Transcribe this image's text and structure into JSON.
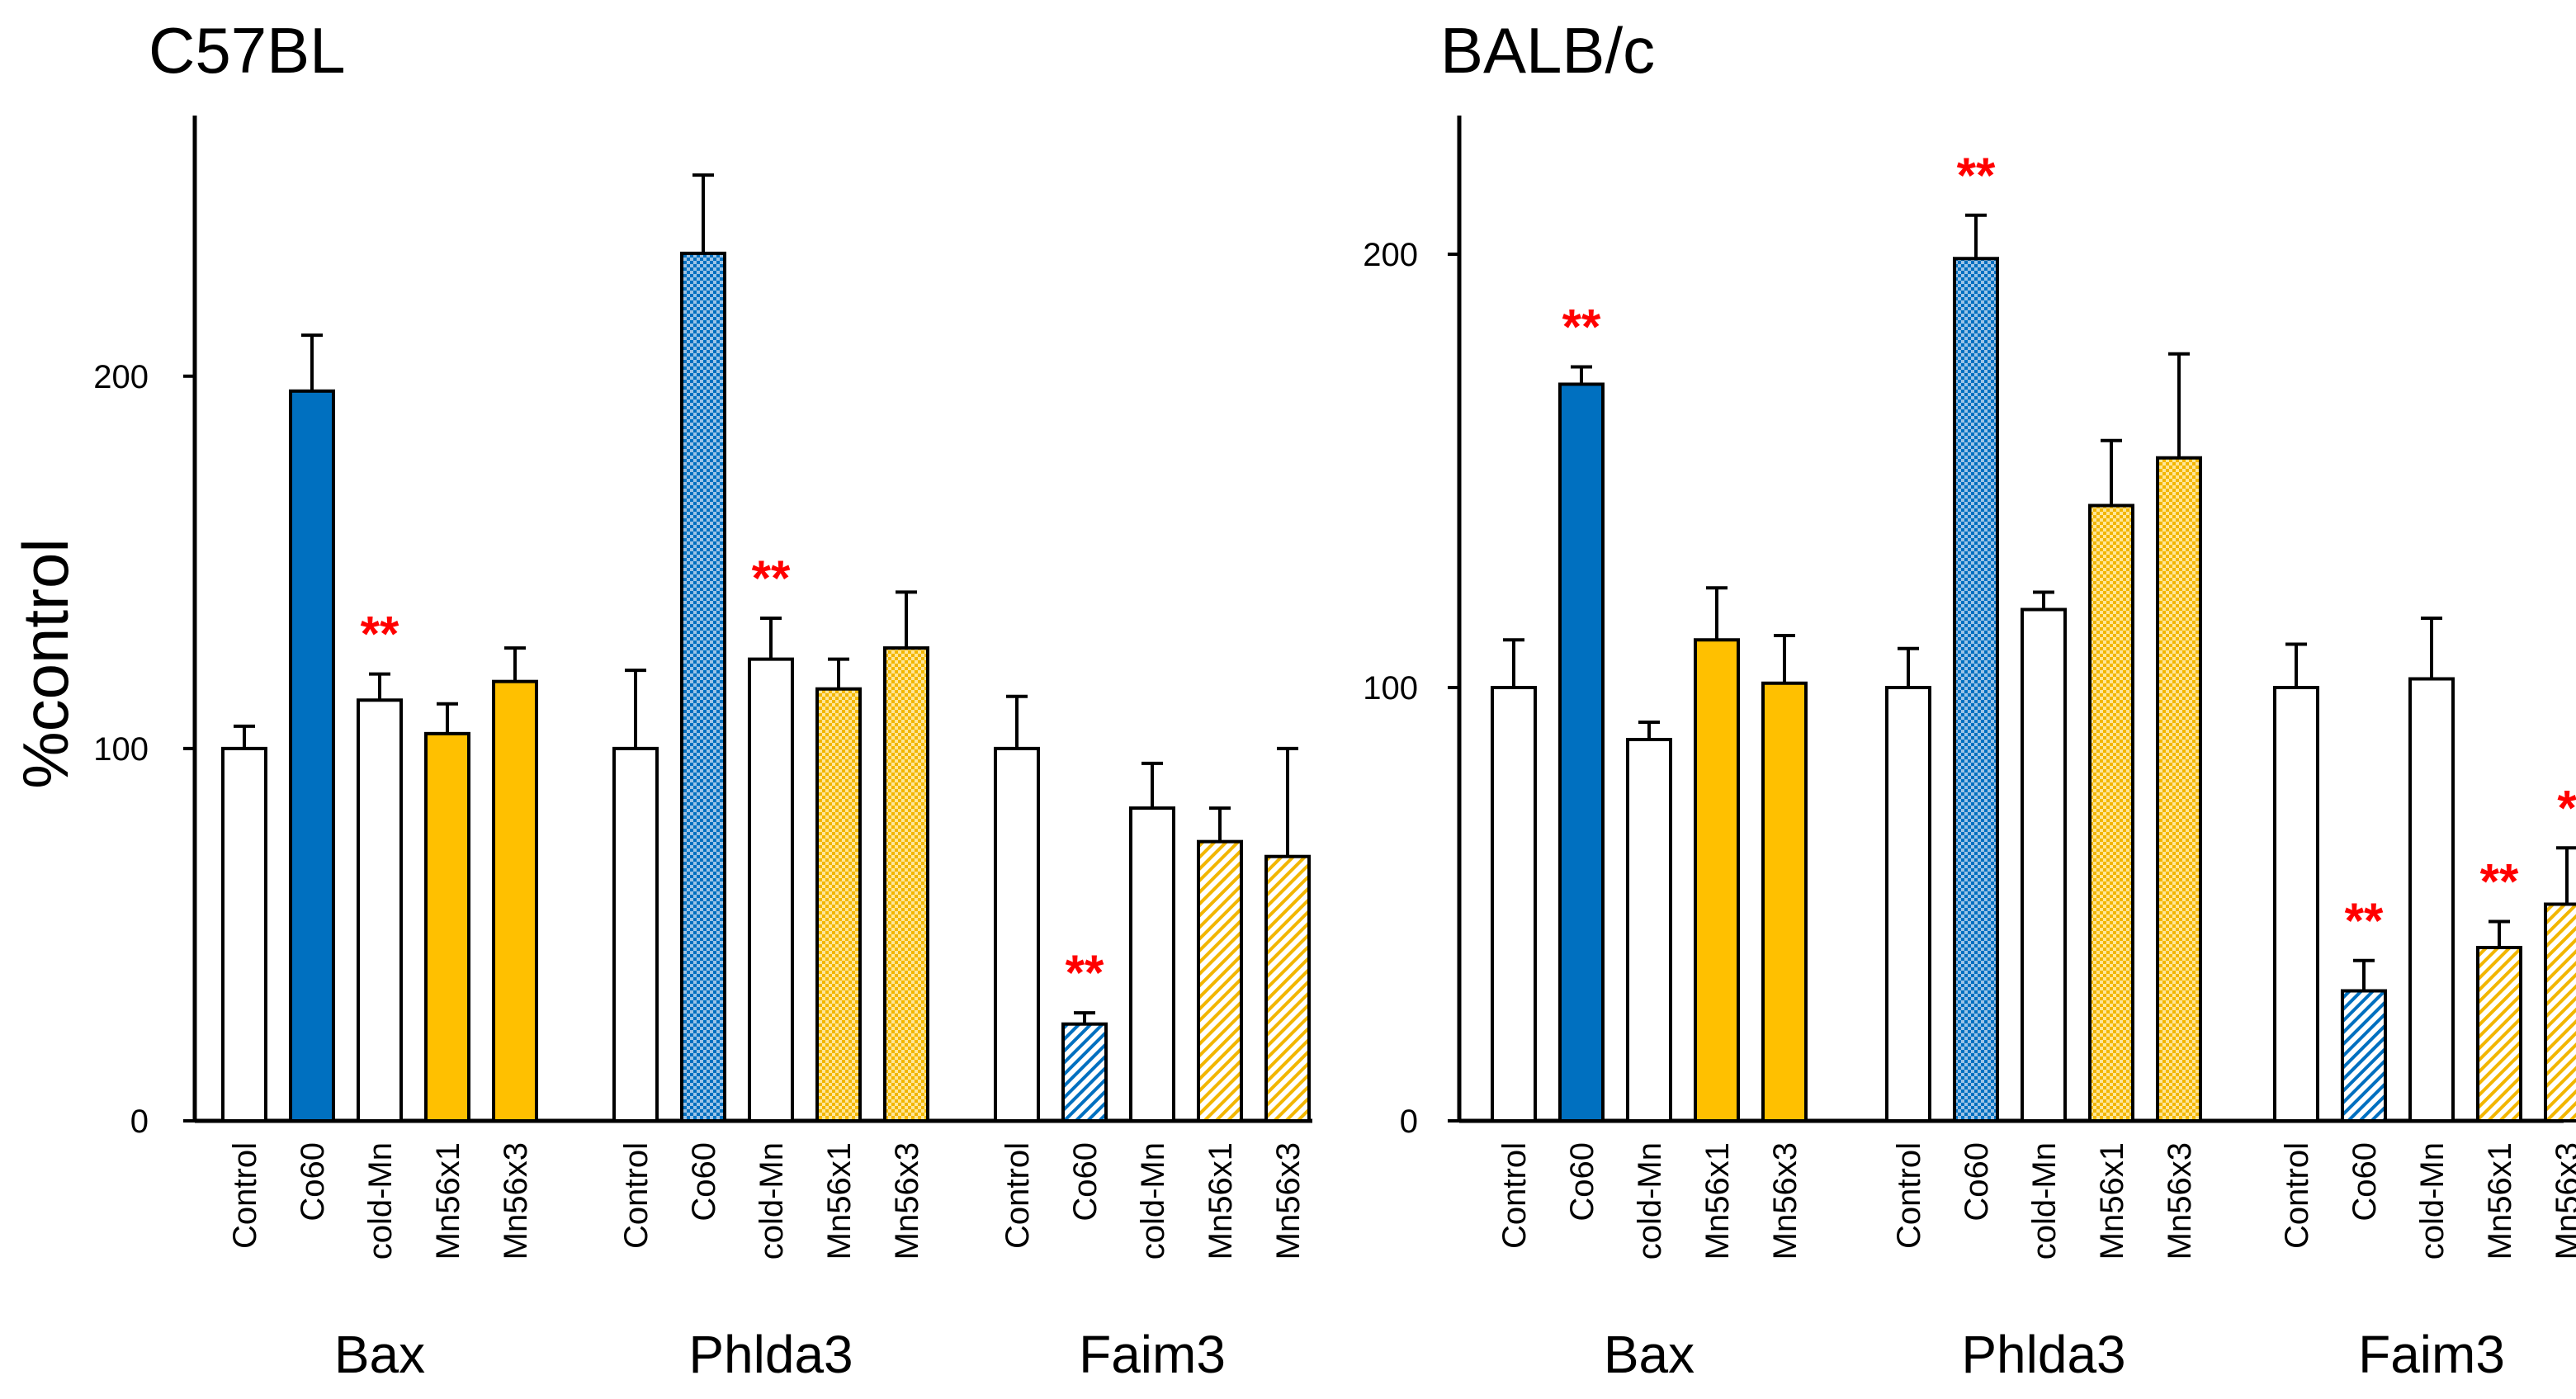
{
  "colors": {
    "co60": "#0070C0",
    "mn": "#FFC000",
    "control": "#FFFFFF",
    "significance": "#FF0000",
    "axis": "#000000"
  },
  "chart_data": [
    {
      "type": "bar",
      "title": "C57BL",
      "ylabel": "%control",
      "xlabel": "",
      "ylim": [
        0,
        270
      ],
      "yticks": [
        0,
        100,
        200
      ],
      "ytick_labels": [
        "0",
        "100",
        "200"
      ],
      "categories": [
        "Control",
        "Co60",
        "cold-Mn",
        "Mn56x1",
        "Mn56x3"
      ],
      "groups": [
        {
          "name": "Bax",
          "values": [
            100,
            196,
            113,
            104,
            118
          ],
          "errors": [
            6,
            15,
            7,
            8,
            9
          ],
          "fills": [
            "control",
            "solid-blue",
            "control",
            "solid-orange",
            "solid-orange"
          ],
          "significance": [
            "",
            "",
            "**",
            "",
            ""
          ]
        },
        {
          "name": "Phlda3",
          "values": [
            100,
            233,
            124,
            116,
            127
          ],
          "errors": [
            21,
            21,
            11,
            8,
            15
          ],
          "fills": [
            "control",
            "check-blue",
            "control",
            "check-orange",
            "check-orange"
          ],
          "significance": [
            "",
            "",
            "**",
            "",
            ""
          ]
        },
        {
          "name": "Faim3",
          "values": [
            100,
            26,
            84,
            75,
            71
          ],
          "errors": [
            14,
            3,
            12,
            9,
            29
          ],
          "fills": [
            "control",
            "diag-blue",
            "control",
            "diag-orange",
            "diag-orange"
          ],
          "significance": [
            "",
            "**",
            "",
            "",
            ""
          ]
        }
      ]
    },
    {
      "type": "bar",
      "title": "BALB/c",
      "ylabel": "",
      "xlabel": "",
      "ylim": [
        0,
        232
      ],
      "yticks": [
        0,
        100,
        200
      ],
      "ytick_labels": [
        "0",
        "100",
        "200"
      ],
      "categories": [
        "Control",
        "Co60",
        "cold-Mn",
        "Mn56x1",
        "Mn56x3"
      ],
      "groups": [
        {
          "name": "Bax",
          "values": [
            100,
            170,
            88,
            111,
            101
          ],
          "errors": [
            11,
            4,
            4,
            12,
            11
          ],
          "fills": [
            "control",
            "solid-blue",
            "control",
            "solid-orange",
            "solid-orange"
          ],
          "significance": [
            "",
            "**",
            "",
            "",
            ""
          ]
        },
        {
          "name": "Phlda3",
          "values": [
            100,
            199,
            118,
            142,
            153
          ],
          "errors": [
            9,
            10,
            4,
            15,
            24
          ],
          "fills": [
            "control",
            "check-blue",
            "control",
            "check-orange",
            "check-orange"
          ],
          "significance": [
            "",
            "**",
            "",
            "",
            ""
          ]
        },
        {
          "name": "Faim3",
          "values": [
            100,
            30,
            102,
            40,
            50
          ],
          "errors": [
            10,
            7,
            14,
            6,
            13
          ],
          "fills": [
            "control",
            "diag-blue",
            "control",
            "diag-orange",
            "diag-orange"
          ],
          "significance": [
            "",
            "**",
            "",
            "**",
            "*"
          ]
        }
      ]
    }
  ]
}
